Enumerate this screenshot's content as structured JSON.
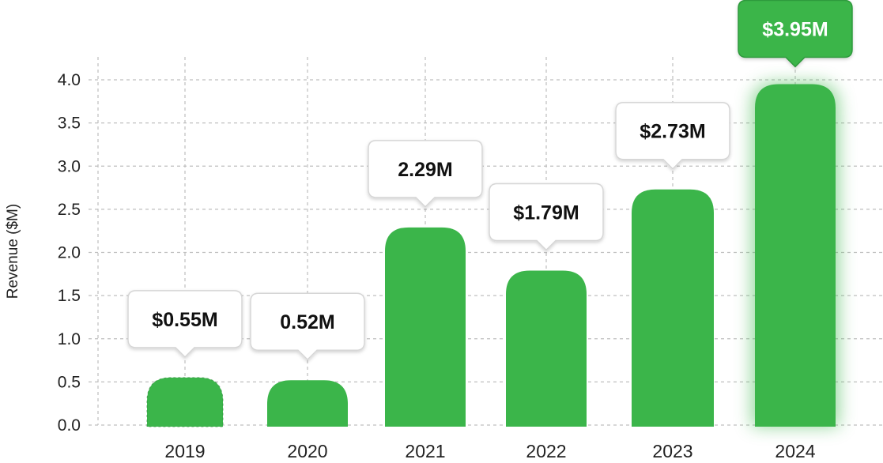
{
  "chart_data": {
    "type": "bar",
    "categories": [
      "2019",
      "2020",
      "2021",
      "2022",
      "2023",
      "2024"
    ],
    "values": [
      0.55,
      0.52,
      2.29,
      1.79,
      2.73,
      3.95
    ],
    "data_labels": [
      "$0.55M",
      "0.52M",
      "2.29M",
      "$1.79M",
      "$2.73M",
      "$3.95M"
    ],
    "title": "",
    "xlabel": "",
    "ylabel": "Revenue  ($M)",
    "ylim": [
      0,
      4.0
    ],
    "yticks": [
      "0.0",
      "0.5",
      "1.0",
      "1.5",
      "2.0",
      "2.5",
      "3.0",
      "3.5",
      "4.0"
    ],
    "grid": true,
    "highlight_category": "2024",
    "colors": {
      "bar": "#3bb54a",
      "highlight_glow": "#3bb54a",
      "callout_bg": "#ffffff",
      "callout_border": "#d6d6d6",
      "callout_text": "#111111",
      "highlight_callout_bg": "#3bb54a",
      "highlight_callout_text": "#ffffff",
      "grid": "#bfbfbf"
    }
  }
}
